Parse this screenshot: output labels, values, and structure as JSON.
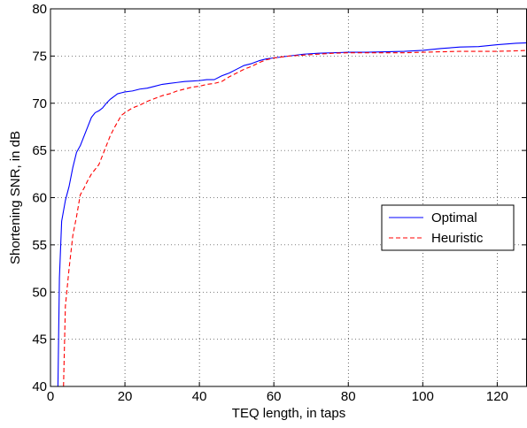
{
  "chart_data": {
    "type": "line",
    "title": "",
    "xlabel": "TEQ length, in taps",
    "ylabel": "Shortening SNR, in dB",
    "xlim": [
      0,
      128
    ],
    "ylim": [
      40,
      80
    ],
    "xticks": [
      0,
      20,
      40,
      60,
      80,
      100,
      120
    ],
    "yticks": [
      40,
      45,
      50,
      55,
      60,
      65,
      70,
      75,
      80
    ],
    "grid": true,
    "legend_position": "center-right",
    "series": [
      {
        "name": "Optimal",
        "color": "#0000ff",
        "style": "solid",
        "x": [
          2,
          2.4,
          3,
          4,
          5,
          6,
          7,
          8,
          9,
          10,
          11,
          12,
          13,
          14,
          15,
          16,
          17,
          18,
          19,
          20,
          22,
          24,
          26,
          28,
          30,
          32,
          34,
          36,
          38,
          40,
          42,
          44,
          46,
          48,
          50,
          52,
          54,
          56,
          58,
          60,
          64,
          68,
          72,
          76,
          80,
          85,
          90,
          95,
          100,
          105,
          110,
          115,
          120,
          125,
          128
        ],
        "y": [
          40,
          51.5,
          57.5,
          59.7,
          61.2,
          63.2,
          64.8,
          65.5,
          66.5,
          67.5,
          68.5,
          69.0,
          69.2,
          69.5,
          70.0,
          70.4,
          70.7,
          71.0,
          71.1,
          71.2,
          71.3,
          71.5,
          71.6,
          71.8,
          72.0,
          72.1,
          72.2,
          72.3,
          72.35,
          72.4,
          72.5,
          72.5,
          72.9,
          73.2,
          73.6,
          74.0,
          74.2,
          74.5,
          74.7,
          74.8,
          75.0,
          75.2,
          75.3,
          75.35,
          75.4,
          75.4,
          75.45,
          75.5,
          75.6,
          75.8,
          75.95,
          76.0,
          76.2,
          76.35,
          76.4
        ]
      },
      {
        "name": "Heuristic",
        "color": "#ff0000",
        "style": "dashed",
        "x": [
          3.5,
          4,
          5,
          6,
          7,
          8,
          9,
          10,
          11,
          12,
          13,
          14,
          15,
          16,
          17,
          18,
          19,
          20,
          22,
          24,
          26,
          28,
          30,
          32,
          34,
          36,
          38,
          40,
          42,
          44,
          46,
          48,
          50,
          52,
          54,
          56,
          58,
          60,
          64,
          68,
          72,
          76,
          80,
          85,
          90,
          95,
          100,
          105,
          110,
          115,
          120,
          125,
          128
        ],
        "y": [
          40,
          48.5,
          52.5,
          56.0,
          58.0,
          60.3,
          61.0,
          61.8,
          62.5,
          63.0,
          63.5,
          64.5,
          65.5,
          66.5,
          67.3,
          68.0,
          68.7,
          69.0,
          69.5,
          69.8,
          70.2,
          70.5,
          70.8,
          71.0,
          71.3,
          71.5,
          71.7,
          71.8,
          72.0,
          72.1,
          72.3,
          72.8,
          73.2,
          73.6,
          73.9,
          74.3,
          74.6,
          74.8,
          75.0,
          75.1,
          75.2,
          75.3,
          75.35,
          75.35,
          75.35,
          75.35,
          75.4,
          75.45,
          75.5,
          75.5,
          75.5,
          75.55,
          75.6
        ]
      }
    ]
  }
}
